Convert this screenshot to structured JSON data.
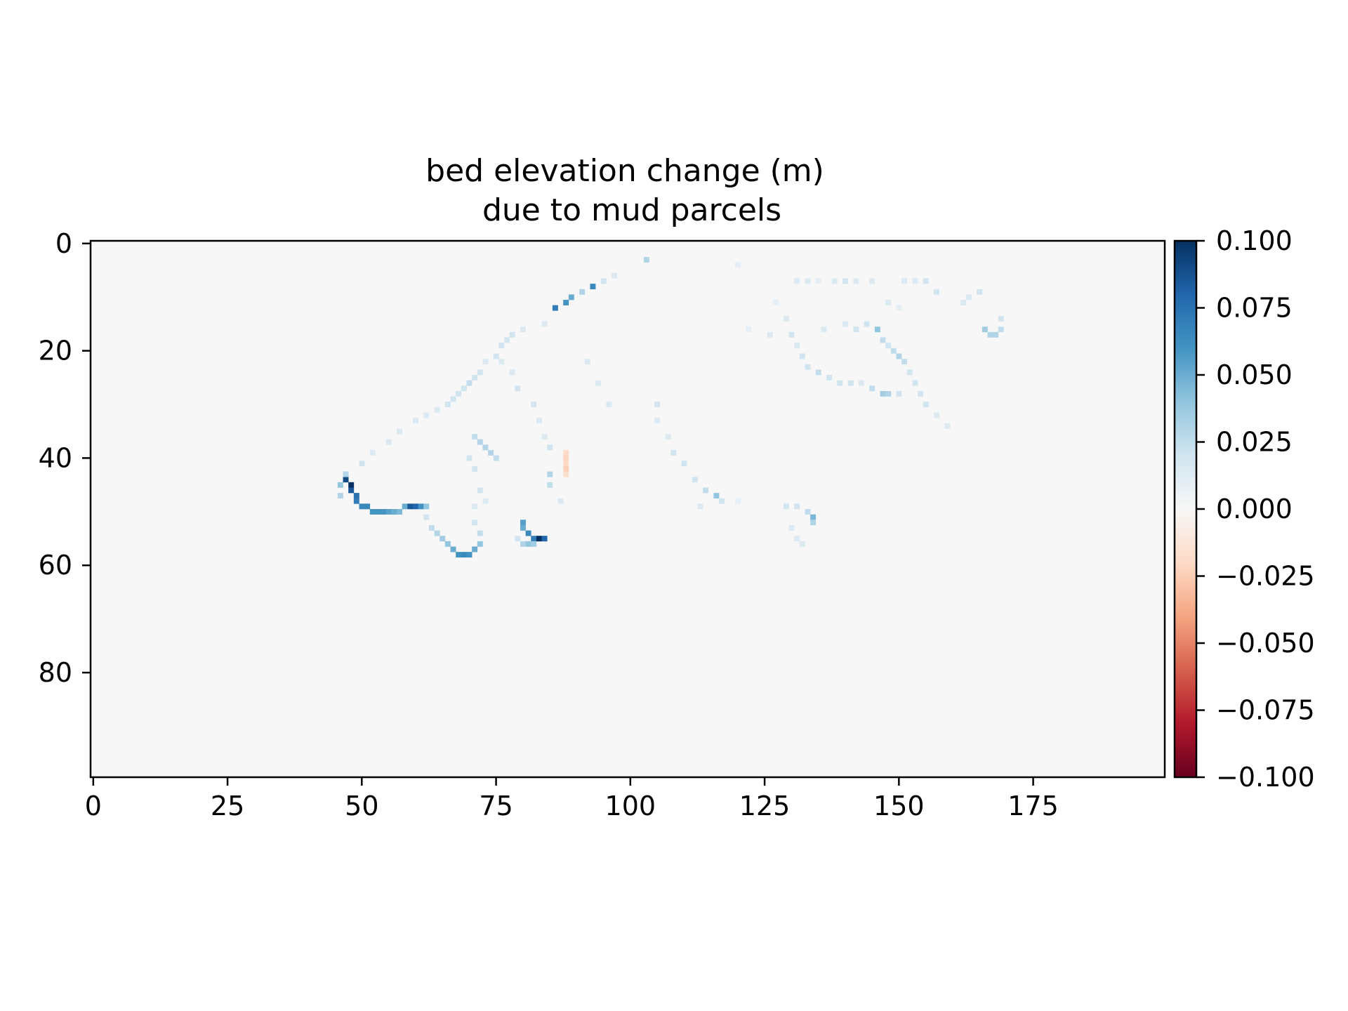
{
  "chart_data": {
    "type": "heatmap",
    "title_lines": [
      "bed elevation change (m)",
      "due to mud parcels"
    ],
    "xlabel": "",
    "ylabel": "",
    "grid": false,
    "x_range": [
      -0.5,
      199.5
    ],
    "y_range": [
      99.5,
      -0.5
    ],
    "x_ticks": [
      0,
      25,
      50,
      75,
      100,
      125,
      150,
      175
    ],
    "x_tick_labels": [
      "0",
      "25",
      "50",
      "75",
      "100",
      "125",
      "150",
      "175"
    ],
    "y_ticks": [
      0,
      20,
      40,
      60,
      80
    ],
    "y_tick_labels": [
      "0",
      "20",
      "40",
      "60",
      "80"
    ],
    "colorbar": {
      "colormap": "RdBu",
      "vmin": -0.1,
      "vmax": 0.1,
      "position": "right",
      "ticks": [
        0.1,
        0.075,
        0.05,
        0.025,
        0.0,
        -0.025,
        -0.05,
        -0.075,
        -0.1
      ],
      "tick_labels": [
        "0.100",
        "0.075",
        "0.050",
        "0.025",
        "0.000",
        "−0.025",
        "−0.050",
        "−0.075",
        "−0.100"
      ]
    },
    "background_value": 0.0,
    "cells": [
      [
        47,
        44,
        0.09
      ],
      [
        48,
        45,
        0.1
      ],
      [
        48,
        46,
        0.085
      ],
      [
        49,
        47,
        0.075
      ],
      [
        49,
        48,
        0.07
      ],
      [
        50,
        49,
        0.065
      ],
      [
        51,
        49,
        0.065
      ],
      [
        52,
        50,
        0.06
      ],
      [
        53,
        50,
        0.06
      ],
      [
        54,
        50,
        0.06
      ],
      [
        55,
        50,
        0.055
      ],
      [
        56,
        50,
        0.05
      ],
      [
        57,
        50,
        0.045
      ],
      [
        58,
        49,
        0.05
      ],
      [
        59,
        49,
        0.085
      ],
      [
        60,
        49,
        0.08
      ],
      [
        61,
        49,
        0.06
      ],
      [
        62,
        49,
        0.04
      ],
      [
        46,
        45,
        0.04
      ],
      [
        47,
        43,
        0.03
      ],
      [
        46,
        47,
        0.03
      ],
      [
        50,
        41,
        0.02
      ],
      [
        52,
        39,
        0.015
      ],
      [
        55,
        37,
        0.015
      ],
      [
        57,
        35,
        0.015
      ],
      [
        60,
        33,
        0.015
      ],
      [
        62,
        32,
        0.015
      ],
      [
        64,
        31,
        0.015
      ],
      [
        66,
        30,
        0.02
      ],
      [
        67,
        29,
        0.02
      ],
      [
        68,
        28,
        0.02
      ],
      [
        69,
        27,
        0.02
      ],
      [
        70,
        26,
        0.025
      ],
      [
        71,
        25,
        0.02
      ],
      [
        72,
        24,
        0.02
      ],
      [
        73,
        22,
        0.015
      ],
      [
        75,
        21,
        0.02
      ],
      [
        76,
        19,
        0.02
      ],
      [
        77,
        18,
        0.02
      ],
      [
        78,
        17,
        0.02
      ],
      [
        80,
        16,
        0.015
      ],
      [
        84,
        15,
        0.015
      ],
      [
        86,
        12,
        0.07
      ],
      [
        88,
        11,
        0.06
      ],
      [
        89,
        10,
        0.05
      ],
      [
        91,
        9,
        0.03
      ],
      [
        93,
        8,
        0.065
      ],
      [
        95,
        7,
        0.02
      ],
      [
        97,
        6,
        0.015
      ],
      [
        103,
        3,
        0.03
      ],
      [
        120,
        4,
        0.01
      ],
      [
        62,
        51,
        0.02
      ],
      [
        63,
        53,
        0.025
      ],
      [
        64,
        54,
        0.03
      ],
      [
        65,
        55,
        0.035
      ],
      [
        66,
        56,
        0.04
      ],
      [
        67,
        57,
        0.05
      ],
      [
        68,
        58,
        0.06
      ],
      [
        69,
        58,
        0.065
      ],
      [
        70,
        58,
        0.06
      ],
      [
        71,
        57,
        0.05
      ],
      [
        72,
        56,
        0.04
      ],
      [
        72,
        54,
        0.025
      ],
      [
        71,
        52,
        0.02
      ],
      [
        71,
        49,
        0.015
      ],
      [
        80,
        52,
        0.055
      ],
      [
        81,
        54,
        0.065
      ],
      [
        82,
        55,
        0.07
      ],
      [
        83,
        55,
        0.1
      ],
      [
        84,
        55,
        0.08
      ],
      [
        80,
        53,
        0.05
      ],
      [
        80,
        56,
        0.03
      ],
      [
        81,
        56,
        0.04
      ],
      [
        82,
        56,
        0.035
      ],
      [
        79,
        55,
        0.02
      ],
      [
        71,
        36,
        0.025
      ],
      [
        72,
        37,
        0.03
      ],
      [
        73,
        38,
        0.03
      ],
      [
        74,
        39,
        0.03
      ],
      [
        75,
        40,
        0.025
      ],
      [
        70,
        40,
        0.02
      ],
      [
        71,
        42,
        0.02
      ],
      [
        72,
        46,
        0.02
      ],
      [
        73,
        48,
        0.015
      ],
      [
        88,
        39,
        -0.02
      ],
      [
        88,
        40,
        -0.022
      ],
      [
        88,
        41,
        -0.02
      ],
      [
        88,
        42,
        -0.024
      ],
      [
        88,
        43,
        -0.018
      ],
      [
        85,
        43,
        0.03
      ],
      [
        85,
        45,
        0.025
      ],
      [
        87,
        48,
        0.015
      ],
      [
        76,
        22,
        0.015
      ],
      [
        78,
        24,
        0.015
      ],
      [
        79,
        27,
        0.02
      ],
      [
        82,
        30,
        0.02
      ],
      [
        83,
        33,
        0.015
      ],
      [
        84,
        36,
        0.015
      ],
      [
        85,
        38,
        0.02
      ],
      [
        92,
        22,
        0.015
      ],
      [
        94,
        26,
        0.015
      ],
      [
        96,
        30,
        0.015
      ],
      [
        105,
        30,
        0.02
      ],
      [
        105,
        33,
        0.015
      ],
      [
        107,
        36,
        0.015
      ],
      [
        108,
        39,
        0.02
      ],
      [
        110,
        41,
        0.02
      ],
      [
        112,
        44,
        0.02
      ],
      [
        114,
        46,
        0.025
      ],
      [
        116,
        47,
        0.04
      ],
      [
        117,
        48,
        0.02
      ],
      [
        113,
        49,
        0.015
      ],
      [
        120,
        48,
        0.01
      ],
      [
        129,
        49,
        0.02
      ],
      [
        131,
        49,
        0.02
      ],
      [
        133,
        50,
        0.025
      ],
      [
        134,
        51,
        0.045
      ],
      [
        134,
        52,
        0.03
      ],
      [
        131,
        55,
        0.015
      ],
      [
        132,
        56,
        0.015
      ],
      [
        130,
        53,
        0.015
      ],
      [
        127,
        11,
        0.01
      ],
      [
        129,
        14,
        0.015
      ],
      [
        130,
        17,
        0.02
      ],
      [
        131,
        19,
        0.015
      ],
      [
        132,
        21,
        0.02
      ],
      [
        133,
        23,
        0.02
      ],
      [
        135,
        24,
        0.025
      ],
      [
        137,
        25,
        0.02
      ],
      [
        139,
        26,
        0.02
      ],
      [
        141,
        26,
        0.02
      ],
      [
        143,
        26,
        0.015
      ],
      [
        145,
        27,
        0.025
      ],
      [
        147,
        28,
        0.035
      ],
      [
        148,
        28,
        0.03
      ],
      [
        150,
        28,
        0.02
      ],
      [
        146,
        16,
        0.04
      ],
      [
        147,
        18,
        0.025
      ],
      [
        148,
        19,
        0.02
      ],
      [
        149,
        20,
        0.025
      ],
      [
        150,
        21,
        0.03
      ],
      [
        151,
        22,
        0.025
      ],
      [
        152,
        24,
        0.02
      ],
      [
        153,
        26,
        0.02
      ],
      [
        154,
        28,
        0.02
      ],
      [
        155,
        30,
        0.02
      ],
      [
        157,
        32,
        0.015
      ],
      [
        159,
        34,
        0.015
      ],
      [
        166,
        16,
        0.035
      ],
      [
        167,
        17,
        0.03
      ],
      [
        168,
        17,
        0.03
      ],
      [
        169,
        16,
        0.025
      ],
      [
        169,
        14,
        0.02
      ],
      [
        165,
        9,
        0.02
      ],
      [
        163,
        10,
        0.015
      ],
      [
        162,
        11,
        0.015
      ],
      [
        157,
        9,
        0.02
      ],
      [
        155,
        7,
        0.02
      ],
      [
        153,
        7,
        0.015
      ],
      [
        151,
        7,
        0.015
      ],
      [
        138,
        7,
        0.015
      ],
      [
        140,
        7,
        0.02
      ],
      [
        142,
        7,
        0.015
      ],
      [
        145,
        7,
        0.015
      ],
      [
        131,
        7,
        0.015
      ],
      [
        133,
        7,
        0.015
      ],
      [
        135,
        7,
        0.01
      ],
      [
        148,
        11,
        0.015
      ],
      [
        150,
        12,
        0.01
      ],
      [
        136,
        16,
        0.015
      ],
      [
        140,
        15,
        0.015
      ],
      [
        142,
        16,
        0.02
      ],
      [
        144,
        15,
        0.02
      ],
      [
        126,
        17,
        0.015
      ],
      [
        122,
        16,
        0.01
      ]
    ]
  }
}
